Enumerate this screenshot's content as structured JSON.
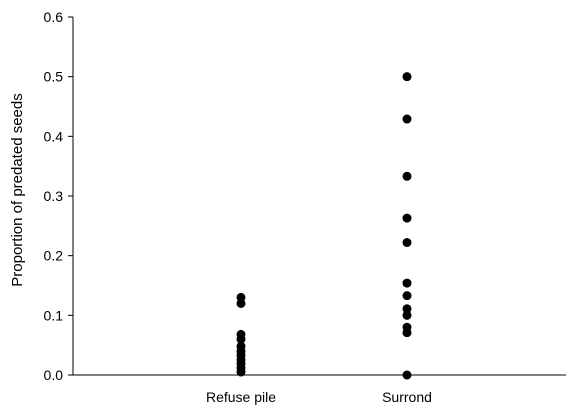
{
  "chart_data": {
    "type": "scatter",
    "title": "",
    "xlabel": "",
    "ylabel": "Proportion of predated seeds",
    "categories": [
      "Refuse pile",
      "Surrond"
    ],
    "ylim": [
      0,
      0.6
    ],
    "yticks": [
      "0.0",
      "0.1",
      "0.2",
      "0.3",
      "0.4",
      "0.5",
      "0.6"
    ],
    "ytick_values": [
      0,
      0.1,
      0.2,
      0.3,
      0.4,
      0.5,
      0.6
    ],
    "grid": false,
    "legend": "none",
    "marker_color": "#000000",
    "series": [
      {
        "category": "Refuse pile",
        "values": [
          0.13,
          0.12,
          0.068,
          0.06,
          0.048,
          0.04,
          0.033,
          0.026,
          0.019,
          0.012,
          0.005
        ]
      },
      {
        "category": "Surrond",
        "values": [
          0.5,
          0.429,
          0.333,
          0.263,
          0.222,
          0.154,
          0.133,
          0.111,
          0.1,
          0.08,
          0.071,
          0.0
        ]
      }
    ]
  }
}
